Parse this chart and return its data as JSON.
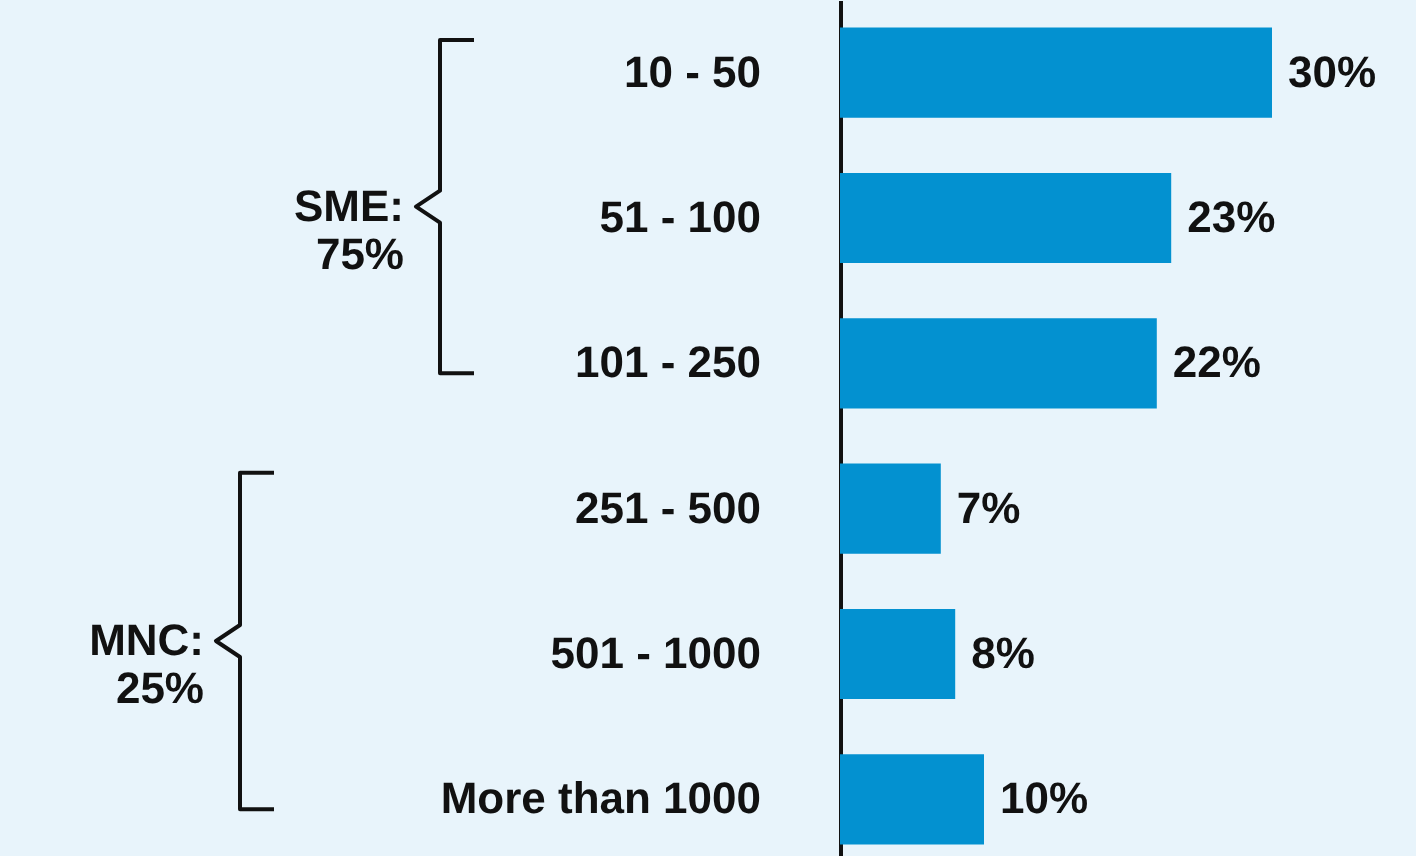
{
  "chart_data": {
    "type": "bar",
    "orientation": "horizontal",
    "categories": [
      "10 - 50",
      "51 - 100",
      "101 - 250",
      "251 - 500",
      "501 - 1000",
      "More than 1000"
    ],
    "values": [
      30,
      23,
      22,
      7,
      8,
      10
    ],
    "value_labels": [
      "30%",
      "23%",
      "22%",
      "7%",
      "8%",
      "10%"
    ],
    "color": "#0391d0",
    "xlim": [
      0,
      40
    ],
    "tick_labels": "y",
    "grid": false,
    "annotations": [
      "SME:\n75%",
      "MNC:\n25%"
    ]
  }
}
